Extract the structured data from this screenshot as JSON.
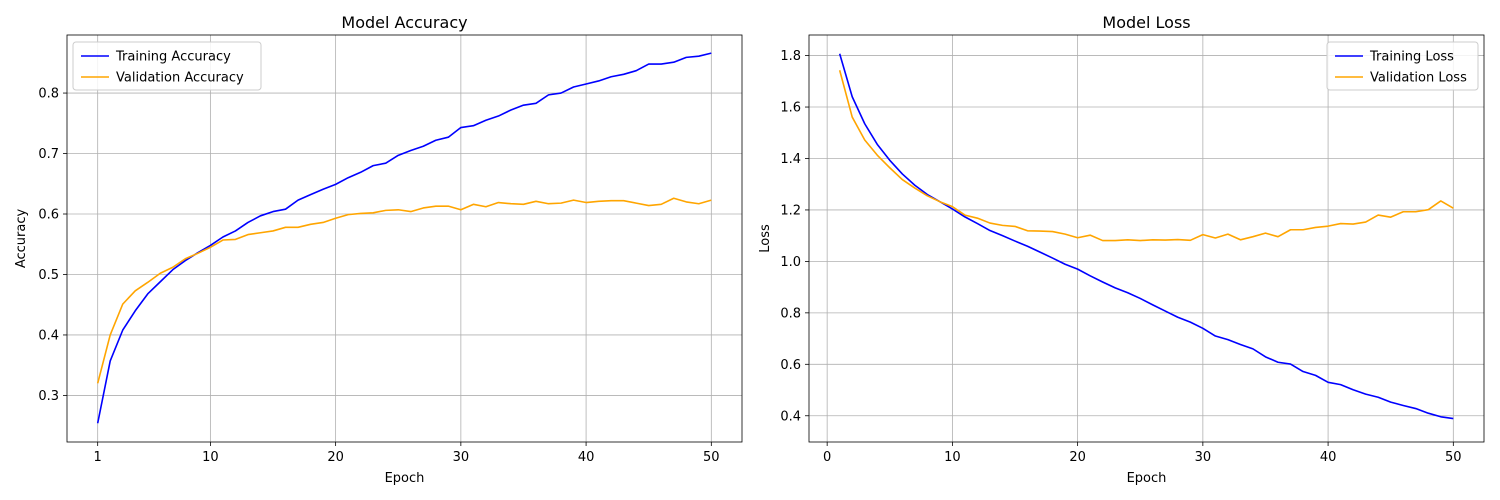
{
  "chart_data": [
    {
      "type": "line",
      "title": "Model Accuracy",
      "xlabel": "Epoch",
      "ylabel": "Accuracy",
      "xlim": [
        -1.45,
        52.45
      ],
      "ylim": [
        0.223,
        0.896
      ],
      "xticks": [
        1,
        10,
        20,
        30,
        40,
        50
      ],
      "yticks": [
        0.3,
        0.4,
        0.5,
        0.6,
        0.7,
        0.8
      ],
      "ytick_labels": [
        "0.3",
        "0.4",
        "0.5",
        "0.6",
        "0.7",
        "0.8"
      ],
      "grid": true,
      "legend_location": "upper left",
      "x": [
        1,
        2,
        3,
        4,
        5,
        6,
        7,
        8,
        9,
        10,
        11,
        12,
        13,
        14,
        15,
        16,
        17,
        18,
        19,
        20,
        21,
        22,
        23,
        24,
        25,
        26,
        27,
        28,
        29,
        30,
        31,
        32,
        33,
        34,
        35,
        36,
        37,
        38,
        39,
        40,
        41,
        42,
        43,
        44,
        45,
        46,
        47,
        48,
        49,
        50
      ],
      "series": [
        {
          "name": "Training Accuracy",
          "color": "#0000ff",
          "values": [
            0.254,
            0.357,
            0.408,
            0.44,
            0.468,
            0.488,
            0.508,
            0.523,
            0.536,
            0.548,
            0.562,
            0.572,
            0.586,
            0.597,
            0.604,
            0.608,
            0.623,
            0.632,
            0.641,
            0.649,
            0.66,
            0.669,
            0.68,
            0.684,
            0.697,
            0.705,
            0.712,
            0.722,
            0.727,
            0.743,
            0.746,
            0.755,
            0.762,
            0.772,
            0.78,
            0.783,
            0.797,
            0.8,
            0.81,
            0.815,
            0.82,
            0.827,
            0.831,
            0.837,
            0.848,
            0.848,
            0.851,
            0.859,
            0.861,
            0.866
          ]
        },
        {
          "name": "Validation Accuracy",
          "color": "#ffa500",
          "values": [
            0.32,
            0.4,
            0.451,
            0.473,
            0.487,
            0.502,
            0.512,
            0.526,
            0.535,
            0.545,
            0.557,
            0.558,
            0.566,
            0.569,
            0.572,
            0.578,
            0.578,
            0.583,
            0.586,
            0.593,
            0.599,
            0.601,
            0.602,
            0.606,
            0.607,
            0.604,
            0.61,
            0.613,
            0.613,
            0.607,
            0.616,
            0.612,
            0.619,
            0.617,
            0.616,
            0.621,
            0.617,
            0.618,
            0.623,
            0.619,
            0.621,
            0.622,
            0.622,
            0.618,
            0.614,
            0.616,
            0.626,
            0.62,
            0.617,
            0.623
          ]
        }
      ]
    },
    {
      "type": "line",
      "title": "Model Loss",
      "xlabel": "Epoch",
      "ylabel": "Loss",
      "xlim": [
        -1.45,
        52.45
      ],
      "ylim": [
        0.298,
        1.88
      ],
      "xticks": [
        0,
        10,
        20,
        30,
        40,
        50
      ],
      "yticks": [
        0.4,
        0.6,
        0.8,
        1.0,
        1.2,
        1.4,
        1.6,
        1.8
      ],
      "ytick_labels": [
        "0.4",
        "0.6",
        "0.8",
        "1.0",
        "1.2",
        "1.4",
        "1.6",
        "1.8"
      ],
      "grid": true,
      "legend_location": "upper right",
      "x": [
        1,
        2,
        3,
        4,
        5,
        6,
        7,
        8,
        9,
        10,
        11,
        12,
        13,
        14,
        15,
        16,
        17,
        18,
        19,
        20,
        21,
        22,
        23,
        24,
        25,
        26,
        27,
        28,
        29,
        30,
        31,
        32,
        33,
        34,
        35,
        36,
        37,
        38,
        39,
        40,
        41,
        42,
        43,
        44,
        45,
        46,
        47,
        48,
        49,
        50
      ],
      "series": [
        {
          "name": "Training Loss",
          "color": "#0000ff",
          "values": [
            1.807,
            1.64,
            1.535,
            1.455,
            1.393,
            1.34,
            1.296,
            1.26,
            1.232,
            1.204,
            1.173,
            1.147,
            1.12,
            1.1,
            1.079,
            1.059,
            1.036,
            1.013,
            0.989,
            0.97,
            0.944,
            0.92,
            0.897,
            0.878,
            0.856,
            0.831,
            0.807,
            0.783,
            0.764,
            0.74,
            0.71,
            0.696,
            0.677,
            0.66,
            0.629,
            0.608,
            0.601,
            0.572,
            0.557,
            0.53,
            0.521,
            0.501,
            0.484,
            0.472,
            0.453,
            0.44,
            0.428,
            0.41,
            0.396,
            0.389
          ]
        },
        {
          "name": "Validation Loss",
          "color": "#ffa500",
          "values": [
            1.743,
            1.561,
            1.472,
            1.413,
            1.364,
            1.318,
            1.285,
            1.255,
            1.232,
            1.213,
            1.18,
            1.168,
            1.149,
            1.14,
            1.136,
            1.119,
            1.118,
            1.116,
            1.106,
            1.092,
            1.102,
            1.081,
            1.081,
            1.084,
            1.081,
            1.084,
            1.083,
            1.085,
            1.082,
            1.104,
            1.091,
            1.106,
            1.084,
            1.096,
            1.11,
            1.096,
            1.123,
            1.123,
            1.132,
            1.137,
            1.147,
            1.145,
            1.153,
            1.18,
            1.172,
            1.193,
            1.193,
            1.201,
            1.235,
            1.207
          ]
        }
      ]
    }
  ]
}
